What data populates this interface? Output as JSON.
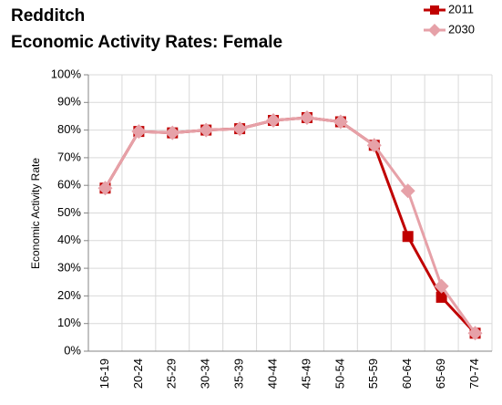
{
  "chart_data": {
    "type": "line",
    "title": "Redditch",
    "subtitle": "Economic Activity Rates: Female",
    "y_label": "Economic Activity Rate",
    "categories": [
      "16-19",
      "20-24",
      "25-29",
      "30-34",
      "35-39",
      "40-44",
      "45-49",
      "50-54",
      "55-59",
      "60-64",
      "65-69",
      "70-74"
    ],
    "series": [
      {
        "name": "2011",
        "color": "#c00000",
        "marker": "square",
        "values": [
          59,
          79.5,
          79,
          80,
          80.5,
          83.5,
          84.5,
          83,
          74.5,
          41.5,
          19.5,
          6.5
        ]
      },
      {
        "name": "2030",
        "color": "#e6a1a8",
        "marker": "diamond",
        "values": [
          59,
          79.5,
          79,
          80,
          80.5,
          83.5,
          84.5,
          83,
          74.5,
          58,
          23.5,
          6.5
        ]
      }
    ],
    "ylim": [
      0,
      100
    ],
    "yticks": [
      {
        "value": 0,
        "label": "0%"
      },
      {
        "value": 10,
        "label": "10%"
      },
      {
        "value": 20,
        "label": "20%"
      },
      {
        "value": 30,
        "label": "30%"
      },
      {
        "value": 40,
        "label": "40%"
      },
      {
        "value": 50,
        "label": "50%"
      },
      {
        "value": 60,
        "label": "60%"
      },
      {
        "value": 70,
        "label": "70%"
      },
      {
        "value": 80,
        "label": "80%"
      },
      {
        "value": 90,
        "label": "90%"
      },
      {
        "value": 100,
        "label": "100%"
      }
    ],
    "grid": true,
    "legend": "top-right"
  }
}
